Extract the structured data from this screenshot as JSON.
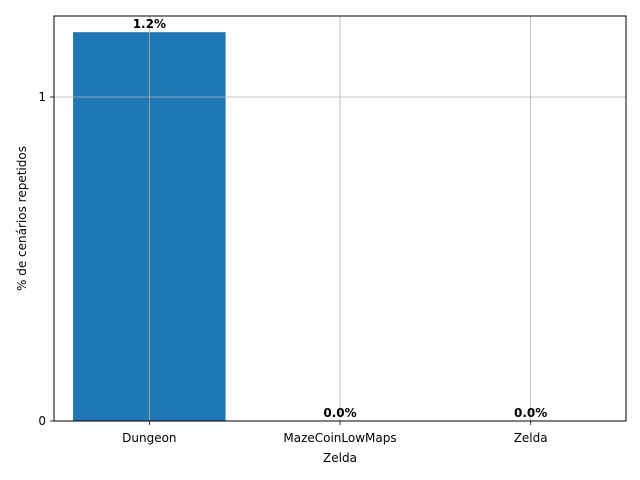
{
  "chart_data": {
    "type": "bar",
    "title": "",
    "xlabel": "Zelda",
    "ylabel": "% de cenários repetidos",
    "categories": [
      "Dungeon",
      "MazeCoinLowMaps",
      "Zelda"
    ],
    "values": [
      1.2,
      0.0,
      0.0
    ],
    "value_labels": [
      "1.2%",
      "0.0%",
      "0.0%"
    ],
    "ylim": [
      0,
      1.25
    ],
    "yticks": [
      0,
      1
    ],
    "ytick_labels": [
      "0",
      "1"
    ],
    "grid": true,
    "bar_color": "#1f77b4",
    "grid_color": "#b0b0b0"
  }
}
